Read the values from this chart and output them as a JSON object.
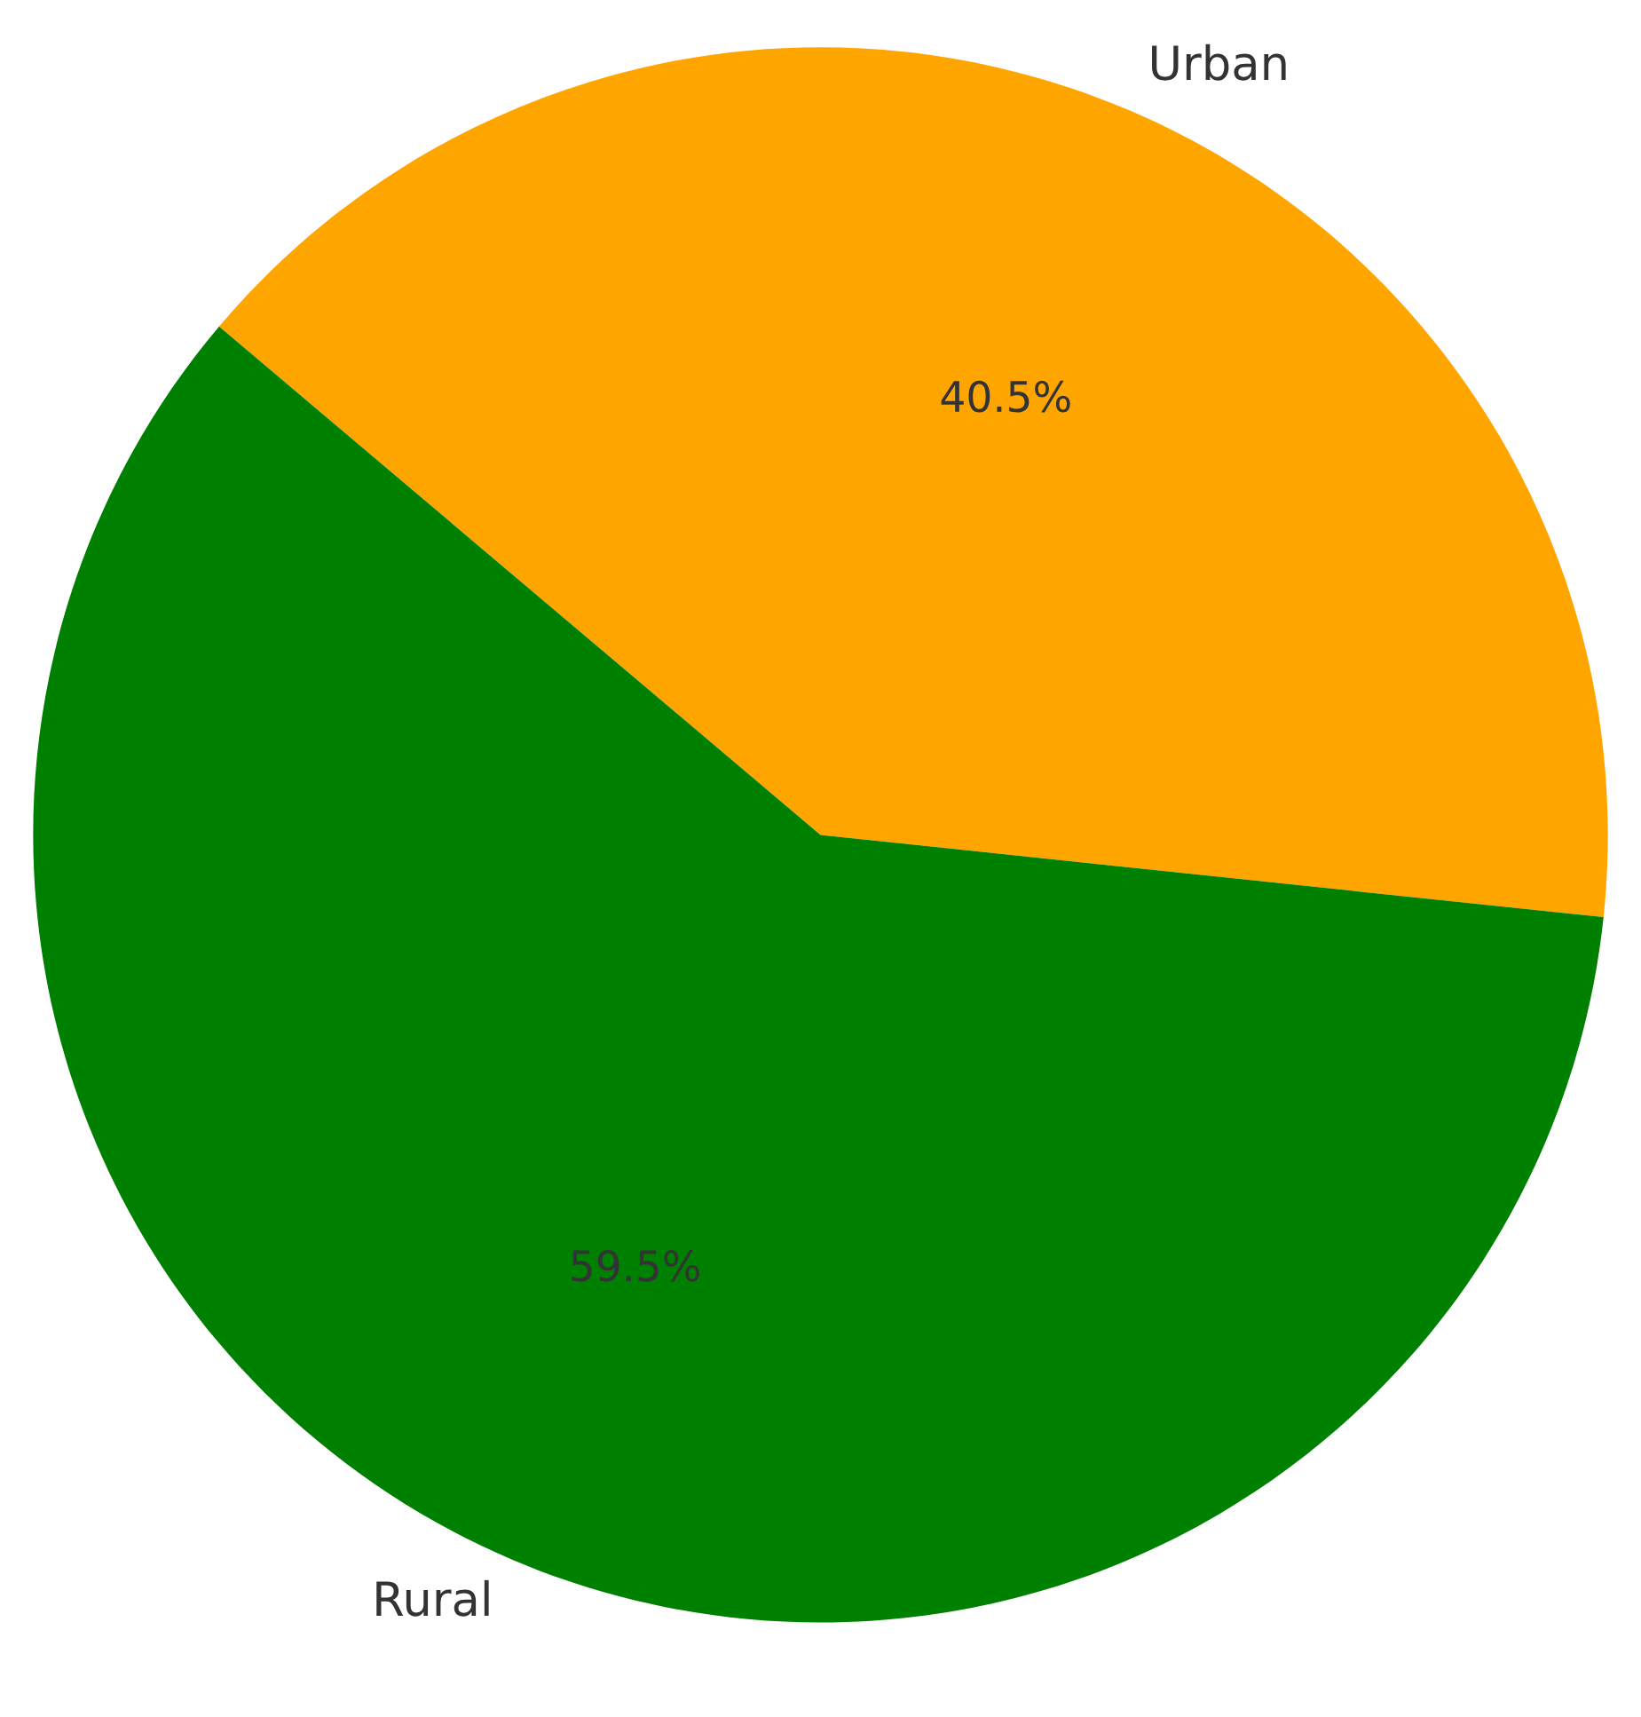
{
  "chart_data": {
    "type": "pie",
    "categories": [
      "Urban",
      "Rural"
    ],
    "values": [
      40.5,
      59.5
    ],
    "colors": [
      "#ffa500",
      "#008000"
    ],
    "value_labels": [
      "40.5%",
      "59.5%"
    ]
  }
}
